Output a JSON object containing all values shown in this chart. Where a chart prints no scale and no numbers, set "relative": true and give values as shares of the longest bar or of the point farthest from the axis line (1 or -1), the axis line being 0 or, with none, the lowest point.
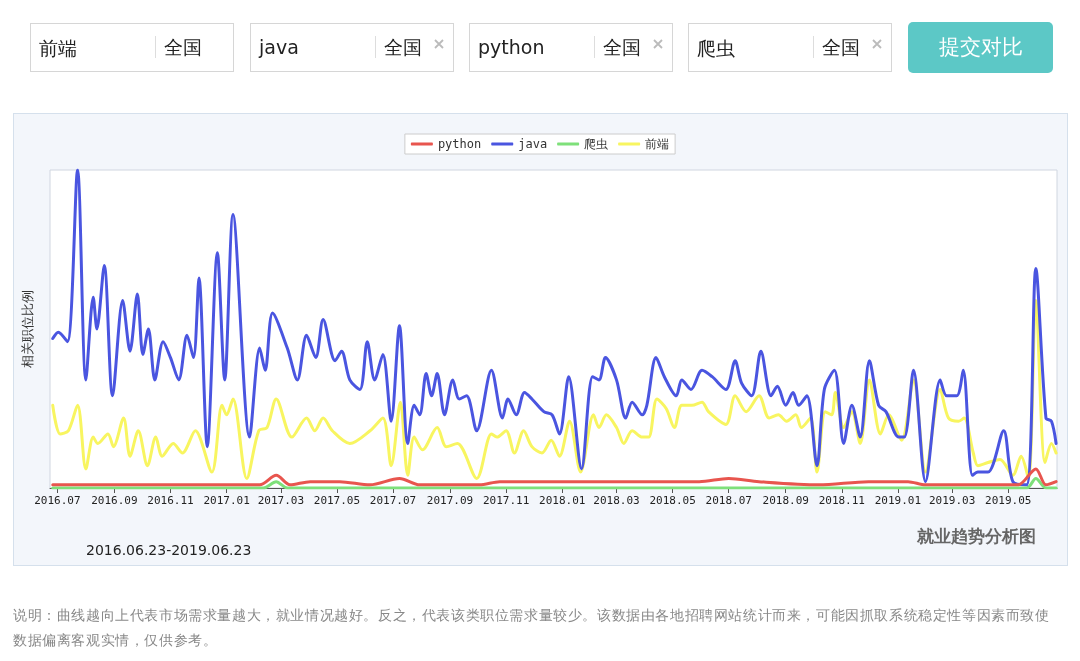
{
  "chart_data": {
    "type": "line",
    "relative": true,
    "ylabel": "相关职位比例",
    "legend": "top",
    "grid": false,
    "marker": "none",
    "line_style": "solid",
    "xlim": [
      "2016-06-23",
      "2019-06-23"
    ],
    "xticks": [
      {
        "value": "2016-07",
        "label": "2016.07"
      },
      {
        "value": "2016-09",
        "label": "2016.09"
      },
      {
        "value": "2016-11",
        "label": "2016.11"
      },
      {
        "value": "2017-01",
        "label": "2017.01"
      },
      {
        "value": "2017-03",
        "label": "2017.03"
      },
      {
        "value": "2017-05",
        "label": "2017.05"
      },
      {
        "value": "2017-07",
        "label": "2017.07"
      },
      {
        "value": "2017-09",
        "label": "2017.09"
      },
      {
        "value": "2017-11",
        "label": "2017.11"
      },
      {
        "value": "2018-01",
        "label": "2018.01"
      },
      {
        "value": "2018-03",
        "label": "2018.03"
      },
      {
        "value": "2018-05",
        "label": "2018.05"
      },
      {
        "value": "2018-07",
        "label": "2018.07"
      },
      {
        "value": "2018-09",
        "label": "2018.09"
      },
      {
        "value": "2018-11",
        "label": "2018.11"
      },
      {
        "value": "2019-01",
        "label": "2019.01"
      },
      {
        "value": "2019-03",
        "label": "2019.03"
      },
      {
        "value": "2019-05",
        "label": "2019.05"
      }
    ],
    "annotations": [
      "前端",
      "全国",
      "java",
      "全国",
      "python",
      "全国",
      "爬虫",
      "全国",
      "提交对比",
      "2016.06.23-2019.06.23",
      "就业趋势分析图",
      "说明：曲线越向上代表市场需求量越大，就业情况越好。反之，代表该类职位需求量较少。该数据由各地招聘网站统计而来，可能因抓取系统稳定性等因素而致使数据偏离客观实情，仅供参考。"
    ],
    "series": [
      {
        "name": "python",
        "color": "#e8554e",
        "x": [
          "2016-06-26",
          "2016-10-10",
          "2016-12-03",
          "2017-02-06",
          "2017-02-24",
          "2017-03-11",
          "2017-04-02",
          "2017-05-04",
          "2017-06-06",
          "2017-07-08",
          "2017-07-30",
          "2017-10-03",
          "2017-10-25",
          "2017-12-29",
          "2018-02-10",
          "2018-04-05",
          "2018-05-30",
          "2018-07-01",
          "2018-08-03",
          "2018-10-07",
          "2018-11-30",
          "2019-01-12",
          "2019-01-31",
          "2019-03-08",
          "2019-04-09",
          "2019-05-01",
          "2019-05-12",
          "2019-05-31",
          "2019-06-11",
          "2019-06-22"
        ],
        "values": [
          0.01,
          0.01,
          0.01,
          0.01,
          0.04,
          0.01,
          0.02,
          0.02,
          0.01,
          0.03,
          0.01,
          0.01,
          0.02,
          0.02,
          0.02,
          0.02,
          0.02,
          0.03,
          0.02,
          0.01,
          0.02,
          0.02,
          0.01,
          0.01,
          0.01,
          0.01,
          0.01,
          0.06,
          0.01,
          0.02
        ]
      },
      {
        "name": "java",
        "color": "#4a55e0",
        "x": [
          "2016-06-26",
          "2016-07-02",
          "2016-07-12",
          "2016-07-23",
          "2016-08-01",
          "2016-08-09",
          "2016-08-13",
          "2016-08-21",
          "2016-08-30",
          "2016-09-10",
          "2016-09-18",
          "2016-09-26",
          "2016-10-02",
          "2016-10-08",
          "2016-10-15",
          "2016-10-24",
          "2016-11-01",
          "2016-11-10",
          "2016-11-19",
          "2016-11-26",
          "2016-12-02",
          "2016-12-11",
          "2016-12-22",
          "2016-12-30",
          "2017-01-08",
          "2017-01-26",
          "2017-02-06",
          "2017-02-12",
          "2017-02-20",
          "2017-03-08",
          "2017-03-19",
          "2017-03-29",
          "2017-04-08",
          "2017-04-16",
          "2017-04-29",
          "2017-05-06",
          "2017-05-15",
          "2017-05-26",
          "2017-06-03",
          "2017-06-11",
          "2017-06-20",
          "2017-06-29",
          "2017-07-08",
          "2017-07-17",
          "2017-07-24",
          "2017-07-30",
          "2017-08-06",
          "2017-08-12",
          "2017-08-18",
          "2017-08-26",
          "2017-09-04",
          "2017-09-11",
          "2017-09-19",
          "2017-09-30",
          "2017-10-16",
          "2017-10-28",
          "2017-11-03",
          "2017-11-12",
          "2017-11-21",
          "2017-11-29",
          "2017-12-12",
          "2017-12-21",
          "2017-12-29",
          "2018-01-08",
          "2018-01-22",
          "2018-02-03",
          "2018-02-10",
          "2018-02-17",
          "2018-03-01",
          "2018-03-11",
          "2018-03-18",
          "2018-03-29",
          "2018-04-03",
          "2018-04-13",
          "2018-04-22",
          "2018-05-05",
          "2018-05-11",
          "2018-05-21",
          "2018-06-02",
          "2018-06-13",
          "2018-06-28",
          "2018-07-08",
          "2018-07-15",
          "2018-07-26",
          "2018-08-05",
          "2018-08-16",
          "2018-08-23",
          "2018-09-01",
          "2018-09-09",
          "2018-09-15",
          "2018-09-24",
          "2018-10-05",
          "2018-10-13",
          "2018-10-24",
          "2018-11-03",
          "2018-11-12",
          "2018-11-21",
          "2018-12-01",
          "2018-12-11",
          "2018-12-19",
          "2019-01-02",
          "2019-01-08",
          "2019-01-18",
          "2019-01-31",
          "2019-02-16",
          "2019-02-23",
          "2019-03-06",
          "2019-03-13",
          "2019-03-23",
          "2019-03-29",
          "2019-04-09",
          "2019-04-26",
          "2019-05-06",
          "2019-05-21",
          "2019-05-31",
          "2019-06-11",
          "2019-06-17",
          "2019-06-22"
        ],
        "values": [
          0.47,
          0.49,
          0.46,
          1,
          0.34,
          0.6,
          0.5,
          0.7,
          0.29,
          0.59,
          0.43,
          0.61,
          0.42,
          0.5,
          0.34,
          0.46,
          0.41,
          0.34,
          0.48,
          0.41,
          0.66,
          0.13,
          0.74,
          0.34,
          0.86,
          0.16,
          0.44,
          0.37,
          0.55,
          0.44,
          0.34,
          0.48,
          0.41,
          0.53,
          0.4,
          0.43,
          0.34,
          0.31,
          0.46,
          0.34,
          0.42,
          0.21,
          0.51,
          0.14,
          0.26,
          0.23,
          0.36,
          0.29,
          0.36,
          0.23,
          0.34,
          0.28,
          0.29,
          0.18,
          0.37,
          0.22,
          0.28,
          0.23,
          0.3,
          0.28,
          0.24,
          0.23,
          0.17,
          0.35,
          0.06,
          0.35,
          0.34,
          0.41,
          0.34,
          0.22,
          0.27,
          0.23,
          0.26,
          0.41,
          0.35,
          0.29,
          0.34,
          0.31,
          0.37,
          0.35,
          0.31,
          0.4,
          0.33,
          0.29,
          0.43,
          0.29,
          0.32,
          0.26,
          0.3,
          0.26,
          0.29,
          0.07,
          0.31,
          0.37,
          0.14,
          0.26,
          0.16,
          0.4,
          0.26,
          0.24,
          0.16,
          0.16,
          0.37,
          0.02,
          0.34,
          0.29,
          0.29,
          0.37,
          0.04,
          0.05,
          0.05,
          0.18,
          0.02,
          0.01,
          0.69,
          0.22,
          0.21,
          0.14
        ]
      },
      {
        "name": "爬虫",
        "color": "#7ee07a",
        "x": [
          "2016-06-26",
          "2017-02-10",
          "2017-02-24",
          "2017-03-08",
          "2019-05-21",
          "2019-05-31",
          "2019-06-11",
          "2019-06-22"
        ],
        "values": [
          0,
          0,
          0.02,
          0,
          0,
          0.03,
          0,
          0
        ]
      },
      {
        "name": "前端",
        "color": "#f8f560",
        "x": [
          "2016-06-26",
          "2016-07-04",
          "2016-07-13",
          "2016-07-23",
          "2016-08-01",
          "2016-08-09",
          "2016-08-14",
          "2016-08-25",
          "2016-08-31",
          "2016-09-11",
          "2016-09-18",
          "2016-09-27",
          "2016-10-07",
          "2016-10-16",
          "2016-10-23",
          "2016-11-04",
          "2016-11-14",
          "2016-11-28",
          "2016-12-16",
          "2016-12-27",
          "2017-01-01",
          "2017-01-08",
          "2017-01-23",
          "2017-02-05",
          "2017-02-14",
          "2017-02-24",
          "2017-03-13",
          "2017-03-29",
          "2017-04-07",
          "2017-04-16",
          "2017-04-26",
          "2017-05-15",
          "2017-06-06",
          "2017-06-20",
          "2017-06-29",
          "2017-07-09",
          "2017-07-17",
          "2017-07-24",
          "2017-08-02",
          "2017-08-18",
          "2017-08-28",
          "2017-09-09",
          "2017-09-30",
          "2017-10-16",
          "2017-10-22",
          "2017-11-01",
          "2017-11-10",
          "2017-11-20",
          "2017-11-29",
          "2017-12-10",
          "2017-12-20",
          "2017-12-29",
          "2018-01-09",
          "2018-01-21",
          "2018-02-04",
          "2018-02-10",
          "2018-02-18",
          "2018-03-01",
          "2018-03-09",
          "2018-03-18",
          "2018-03-29",
          "2018-04-05",
          "2018-04-14",
          "2018-04-24",
          "2018-05-03",
          "2018-05-11",
          "2018-05-22",
          "2018-06-02",
          "2018-06-09",
          "2018-06-28",
          "2018-07-08",
          "2018-07-20",
          "2018-08-03",
          "2018-08-14",
          "2018-08-24",
          "2018-09-02",
          "2018-09-12",
          "2018-09-18",
          "2018-09-28",
          "2018-10-05",
          "2018-10-14",
          "2018-10-21",
          "2018-10-25",
          "2018-11-03",
          "2018-11-12",
          "2018-11-21",
          "2018-12-01",
          "2018-12-13",
          "2018-12-22",
          "2019-01-05",
          "2019-01-18",
          "2019-01-31",
          "2019-02-16",
          "2019-02-25",
          "2019-03-08",
          "2019-03-14",
          "2019-03-24",
          "2019-03-29",
          "2019-04-09",
          "2019-04-22",
          "2019-05-06",
          "2019-05-15",
          "2019-05-23",
          "2019-05-31",
          "2019-06-10",
          "2019-06-17",
          "2019-06-22"
        ],
        "values": [
          0.26,
          0.17,
          0.18,
          0.26,
          0.06,
          0.16,
          0.14,
          0.17,
          0.13,
          0.22,
          0.1,
          0.18,
          0.07,
          0.16,
          0.1,
          0.14,
          0.11,
          0.18,
          0.05,
          0.26,
          0.23,
          0.28,
          0.03,
          0.18,
          0.19,
          0.28,
          0.16,
          0.22,
          0.18,
          0.22,
          0.18,
          0.14,
          0.18,
          0.22,
          0.07,
          0.27,
          0.04,
          0.16,
          0.12,
          0.19,
          0.13,
          0.14,
          0.03,
          0.17,
          0.16,
          0.18,
          0.11,
          0.18,
          0.13,
          0.11,
          0.15,
          0.1,
          0.21,
          0.05,
          0.23,
          0.19,
          0.23,
          0.19,
          0.14,
          0.18,
          0.16,
          0.16,
          0.28,
          0.25,
          0.19,
          0.26,
          0.26,
          0.27,
          0.24,
          0.2,
          0.29,
          0.24,
          0.29,
          0.22,
          0.23,
          0.21,
          0.23,
          0.19,
          0.22,
          0.05,
          0.24,
          0.23,
          0.3,
          0.19,
          0.24,
          0.14,
          0.34,
          0.17,
          0.23,
          0.15,
          0.34,
          0.05,
          0.31,
          0.22,
          0.21,
          0.22,
          0.11,
          0.07,
          0.08,
          0.09,
          0.04,
          0.1,
          0.03,
          0.59,
          0.08,
          0.14,
          0.11
        ]
      }
    ]
  }
}
